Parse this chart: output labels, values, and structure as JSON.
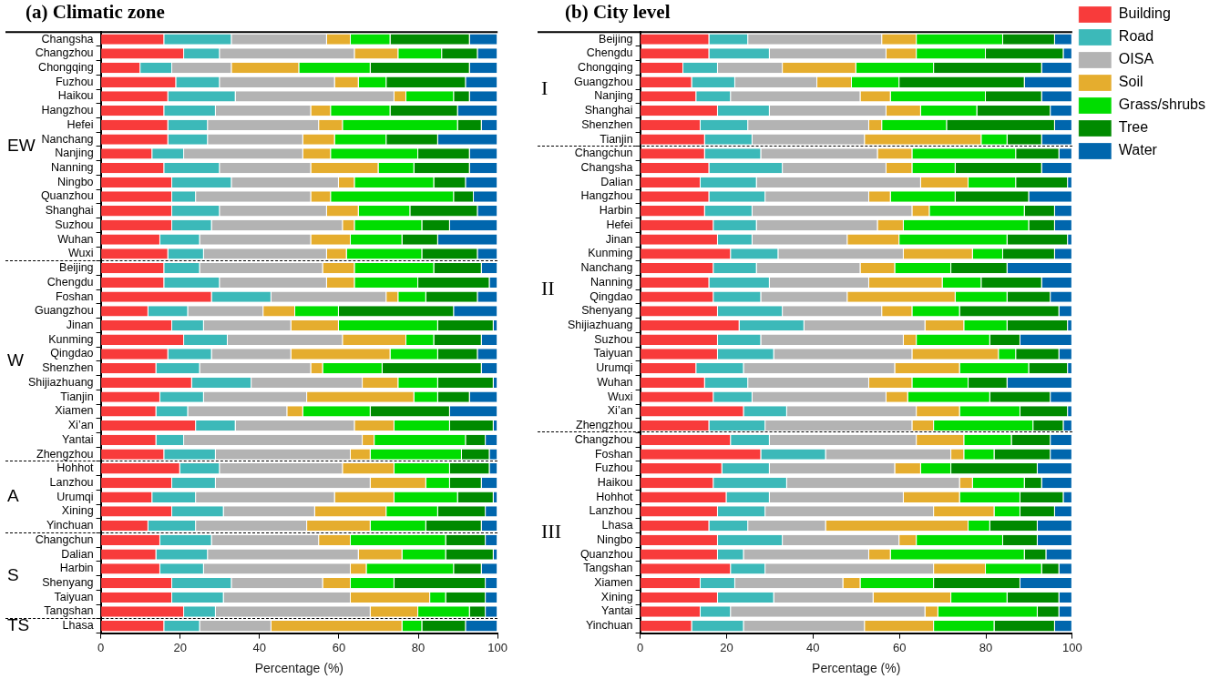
{
  "chart_data": [
    {
      "type": "bar",
      "title": "(a) Climatic zone",
      "xlabel": "Percentage (%)",
      "orientation": "horizontal",
      "stacked": true,
      "grid": false,
      "legend": false,
      "xlim": [
        0,
        100
      ],
      "xticks": [
        0,
        20,
        40,
        60,
        80,
        100
      ],
      "categories": [
        "Changsha",
        "Changzhou",
        "Chongqing",
        "Fuzhou",
        "Haikou",
        "Hangzhou",
        "Hefei",
        "Nanchang",
        "Nanjing",
        "Nanning",
        "Ningbo",
        "Quanzhou",
        "Shanghai",
        "Suzhou",
        "Wuhan",
        "Wuxi",
        "Beijing",
        "Chengdu",
        "Foshan",
        "Guangzhou",
        "Jinan",
        "Kunming",
        "Qingdao",
        "Shenzhen",
        "Shijiazhuang",
        "Tianjin",
        "Xiamen",
        "Xi’an",
        "Yantai",
        "Zhengzhou",
        "Hohhot",
        "Lanzhou",
        "Urumqi",
        "Xining",
        "Yinchuan",
        "Changchun",
        "Dalian",
        "Harbin",
        "Shenyang",
        "Taiyuan",
        "Tangshan",
        "Lhasa"
      ],
      "series": [
        {
          "color": "#f83b3b",
          "values": [
            16,
            21,
            10,
            19,
            17,
            16,
            17,
            17,
            13,
            16,
            18,
            18,
            18,
            18,
            15,
            17,
            16,
            16,
            28,
            12,
            18,
            21,
            17,
            14,
            23,
            15,
            14,
            24,
            14,
            16,
            20,
            18,
            13,
            18,
            12,
            15,
            14,
            15,
            18,
            18,
            21,
            16
          ]
        },
        {
          "color": "#3cb9b9",
          "values": [
            17,
            9,
            8,
            11,
            17,
            13,
            10,
            10,
            8,
            14,
            15,
            6,
            12,
            10,
            10,
            9,
            9,
            14,
            15,
            10,
            8,
            11,
            11,
            11,
            15,
            11,
            8,
            10,
            7,
            13,
            10,
            11,
            11,
            13,
            12,
            13,
            13,
            11,
            15,
            13,
            8,
            9
          ]
        },
        {
          "color": "#b3b3b3",
          "values": [
            24,
            34,
            15,
            29,
            40,
            24,
            28,
            24,
            30,
            23,
            27,
            29,
            27,
            33,
            28,
            31,
            31,
            27,
            29,
            19,
            22,
            29,
            20,
            28,
            28,
            26,
            25,
            30,
            45,
            34,
            31,
            39,
            35,
            23,
            28,
            27,
            38,
            37,
            23,
            32,
            39,
            18
          ]
        },
        {
          "color": "#e5ad2e",
          "values": [
            6,
            11,
            17,
            6,
            3,
            5,
            6,
            8,
            7,
            17,
            4,
            5,
            8,
            3,
            10,
            5,
            8,
            7,
            3,
            8,
            12,
            16,
            25,
            3,
            9,
            27,
            4,
            10,
            3,
            5,
            13,
            14,
            15,
            18,
            16,
            8,
            11,
            4,
            7,
            20,
            12,
            33
          ]
        },
        {
          "color": "#00dd00",
          "values": [
            10,
            11,
            18,
            7,
            12,
            15,
            29,
            13,
            22,
            9,
            20,
            31,
            13,
            17,
            13,
            19,
            20,
            16,
            7,
            11,
            25,
            7,
            12,
            15,
            10,
            6,
            17,
            14,
            23,
            23,
            14,
            6,
            16,
            13,
            14,
            24,
            11,
            22,
            11,
            4,
            13,
            5
          ]
        },
        {
          "color": "#008a00",
          "values": [
            20,
            9,
            25,
            20,
            4,
            17,
            6,
            13,
            13,
            14,
            8,
            5,
            17,
            7,
            9,
            14,
            12,
            18,
            13,
            29,
            14,
            12,
            10,
            25,
            14,
            8,
            20,
            11,
            5,
            7,
            10,
            8,
            9,
            12,
            14,
            10,
            12,
            7,
            23,
            10,
            4,
            11
          ]
        },
        {
          "color": "#0066ad",
          "values": [
            7,
            5,
            7,
            8,
            7,
            10,
            4,
            15,
            7,
            7,
            8,
            6,
            5,
            12,
            15,
            5,
            4,
            2,
            5,
            11,
            1,
            4,
            5,
            4,
            1,
            7,
            12,
            1,
            3,
            2,
            2,
            4,
            1,
            3,
            4,
            3,
            1,
            4,
            3,
            3,
            3,
            8
          ]
        }
      ],
      "annotations": [
        "EW",
        "W",
        "A",
        "S",
        "TS"
      ]
    },
    {
      "type": "bar",
      "title": "(b) City level",
      "xlabel": "Percentage (%)",
      "orientation": "horizontal",
      "stacked": true,
      "grid": false,
      "legend": "right",
      "xlim": [
        0,
        100
      ],
      "xticks": [
        0,
        20,
        40,
        60,
        80,
        100
      ],
      "categories": [
        "Beijing",
        "Chengdu",
        "Chongqing",
        "Guangzhou",
        "Nanjing",
        "Shanghai",
        "Shenzhen",
        "Tianjin",
        "Changchun",
        "Changsha",
        "Dalian",
        "Hangzhou",
        "Harbin",
        "Hefei",
        "Jinan",
        "Kunming",
        "Nanchang",
        "Nanning",
        "Qingdao",
        "Shenyang",
        "Shijiazhuang",
        "Suzhou",
        "Taiyuan",
        "Urumqi",
        "Wuhan",
        "Wuxi",
        "Xi’an",
        "Zhengzhou",
        "Changzhou",
        "Foshan",
        "Fuzhou",
        "Haikou",
        "Hohhot",
        "Lanzhou",
        "Lhasa",
        "Ningbo",
        "Quanzhou",
        "Tangshan",
        "Xiamen",
        "Xining",
        "Yantai",
        "Yinchuan"
      ],
      "series": [
        {
          "name": "Building",
          "color": "#f83b3b",
          "values": [
            16,
            16,
            10,
            12,
            13,
            18,
            14,
            15,
            15,
            16,
            14,
            16,
            15,
            17,
            18,
            21,
            17,
            16,
            17,
            18,
            23,
            18,
            18,
            13,
            15,
            17,
            24,
            16,
            21,
            28,
            19,
            17,
            20,
            18,
            16,
            18,
            18,
            21,
            14,
            18,
            14,
            12
          ]
        },
        {
          "name": "Road",
          "color": "#3cb9b9",
          "values": [
            9,
            14,
            8,
            10,
            8,
            12,
            11,
            11,
            13,
            17,
            13,
            13,
            11,
            10,
            8,
            11,
            10,
            14,
            11,
            15,
            15,
            10,
            13,
            11,
            10,
            9,
            10,
            13,
            9,
            15,
            11,
            17,
            10,
            11,
            9,
            15,
            6,
            8,
            8,
            13,
            7,
            12
          ]
        },
        {
          "name": "OISA",
          "color": "#b3b3b3",
          "values": [
            31,
            27,
            15,
            19,
            30,
            27,
            28,
            26,
            27,
            24,
            38,
            24,
            37,
            28,
            22,
            29,
            24,
            23,
            20,
            23,
            28,
            33,
            32,
            35,
            28,
            31,
            30,
            34,
            34,
            29,
            29,
            40,
            31,
            39,
            18,
            27,
            29,
            39,
            25,
            23,
            45,
            28
          ]
        },
        {
          "name": "Soil",
          "color": "#e5ad2e",
          "values": [
            8,
            7,
            17,
            8,
            7,
            8,
            3,
            27,
            8,
            6,
            11,
            5,
            4,
            6,
            12,
            16,
            8,
            17,
            25,
            7,
            9,
            3,
            20,
            15,
            10,
            5,
            10,
            5,
            11,
            3,
            6,
            3,
            13,
            14,
            33,
            4,
            5,
            12,
            4,
            18,
            3,
            16
          ]
        },
        {
          "name": "Grass/shrubs",
          "color": "#00dd00",
          "values": [
            20,
            16,
            18,
            11,
            22,
            13,
            15,
            6,
            24,
            10,
            11,
            15,
            22,
            29,
            25,
            7,
            13,
            9,
            12,
            11,
            10,
            17,
            4,
            16,
            13,
            19,
            14,
            23,
            11,
            7,
            7,
            12,
            14,
            6,
            5,
            20,
            31,
            13,
            17,
            13,
            23,
            14
          ]
        },
        {
          "name": "Tree",
          "color": "#008a00",
          "values": [
            12,
            18,
            25,
            29,
            13,
            17,
            25,
            8,
            10,
            20,
            12,
            17,
            7,
            6,
            14,
            12,
            13,
            14,
            10,
            23,
            14,
            7,
            10,
            9,
            9,
            14,
            11,
            7,
            9,
            13,
            20,
            4,
            10,
            8,
            11,
            8,
            5,
            4,
            20,
            12,
            5,
            14
          ]
        },
        {
          "name": "Water",
          "color": "#0066ad",
          "values": [
            4,
            2,
            7,
            11,
            7,
            5,
            4,
            7,
            3,
            7,
            1,
            10,
            4,
            4,
            1,
            4,
            15,
            7,
            5,
            3,
            1,
            12,
            3,
            1,
            15,
            5,
            1,
            2,
            5,
            5,
            8,
            7,
            2,
            4,
            8,
            8,
            6,
            3,
            12,
            3,
            3,
            4
          ]
        }
      ],
      "annotations": [
        "I",
        "II",
        "III"
      ]
    }
  ]
}
